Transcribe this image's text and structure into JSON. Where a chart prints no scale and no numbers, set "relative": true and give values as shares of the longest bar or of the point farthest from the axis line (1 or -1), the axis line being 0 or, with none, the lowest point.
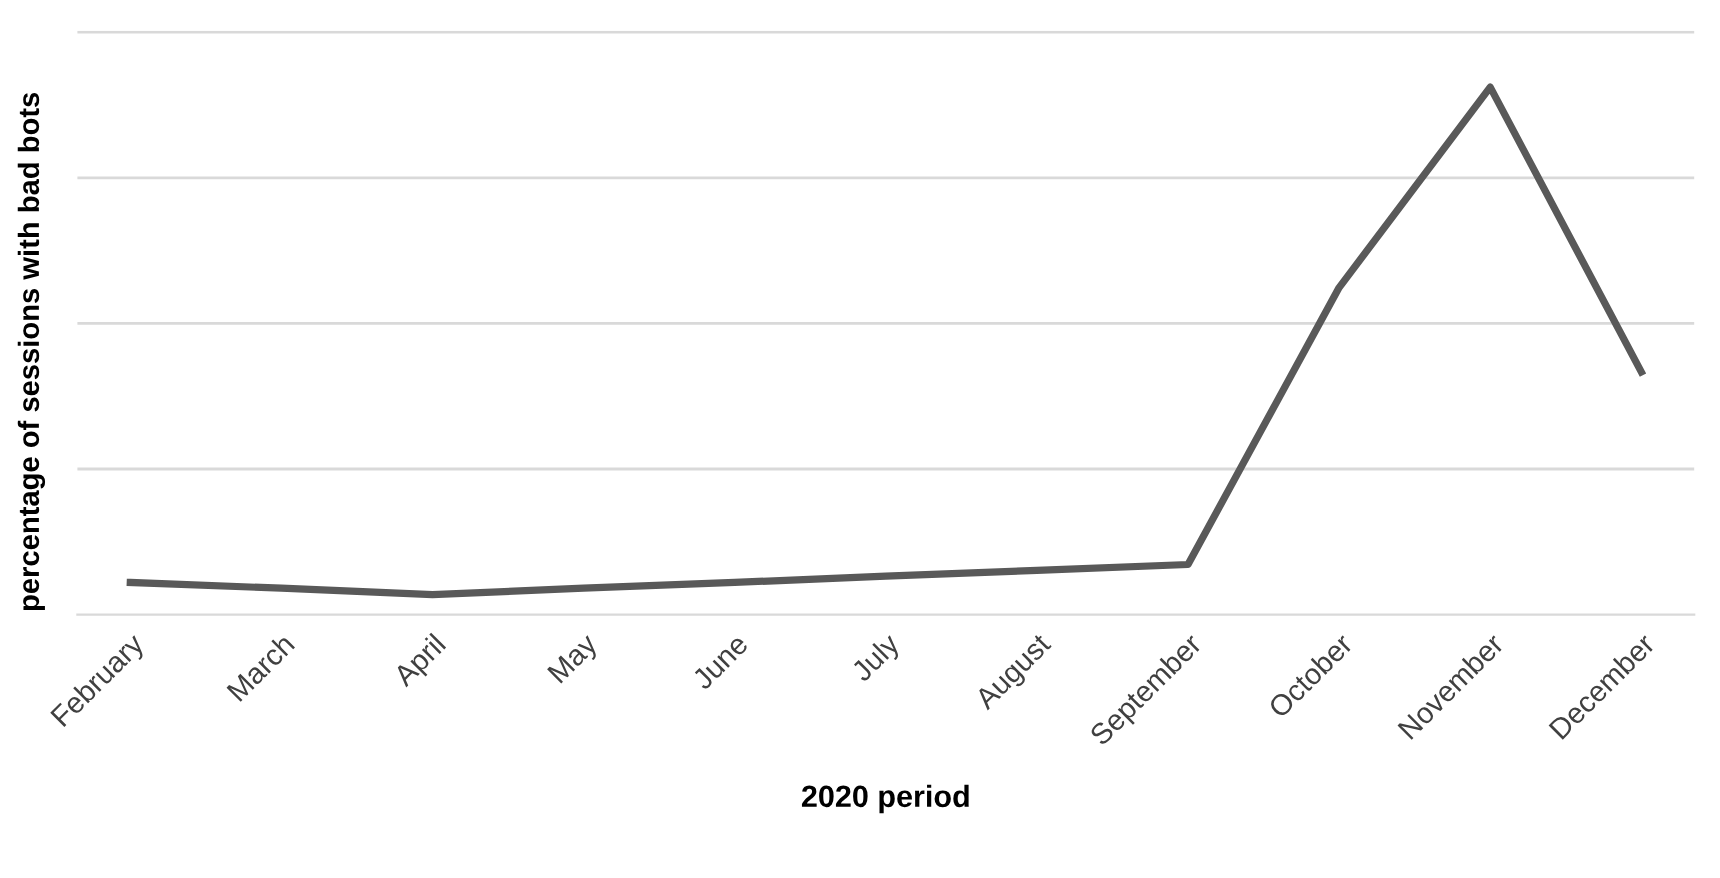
{
  "chart_data": {
    "type": "line",
    "relative": true,
    "xlabel": "2020 period",
    "ylabel": "percentage of sessions with bad bots",
    "categories": [
      "February",
      "March",
      "April",
      "May",
      "June",
      "July",
      "August",
      "September",
      "October",
      "November",
      "December"
    ],
    "series": [
      {
        "color": "#595959",
        "values": [
          0.061,
          0.05,
          0.038,
          0.05,
          0.061,
          0.073,
          0.084,
          0.095,
          0.62,
          1,
          0.46
        ]
      }
    ],
    "grid": "y",
    "legend": false,
    "marker": "none",
    "line_style": "solid"
  }
}
